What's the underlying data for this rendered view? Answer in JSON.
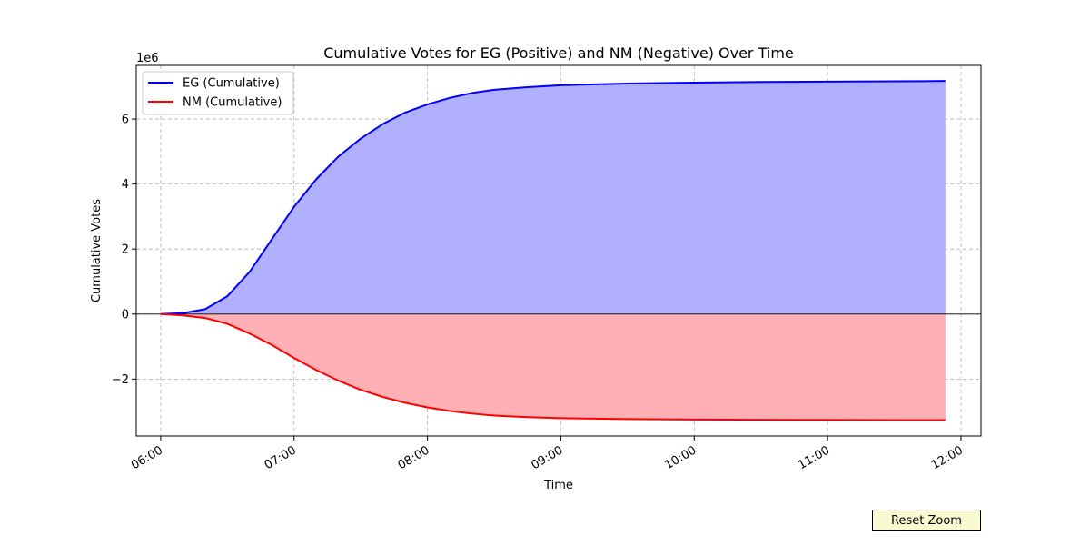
{
  "chart_data": {
    "type": "area",
    "title": "Cumulative Votes for EG (Positive) and NM (Negative) Over Time",
    "xlabel": "Time",
    "ylabel": "Cumulative Votes",
    "y_multiplier_label": "1e6",
    "xlim": [
      "05:49",
      "12:09"
    ],
    "ylim": [
      -3.75,
      7.65
    ],
    "grid": true,
    "legend_position": "top-left",
    "x_ticks": [
      "06:00",
      "07:00",
      "08:00",
      "09:00",
      "10:00",
      "11:00",
      "12:00"
    ],
    "y_ticks": [
      {
        "value": -2,
        "label": "−2"
      },
      {
        "value": 0,
        "label": "0"
      },
      {
        "value": 2,
        "label": "2"
      },
      {
        "value": 4,
        "label": "4"
      },
      {
        "value": 6,
        "label": "6"
      }
    ],
    "x": [
      "06:00",
      "06:10",
      "06:20",
      "06:30",
      "06:40",
      "06:50",
      "07:00",
      "07:10",
      "07:20",
      "07:30",
      "07:40",
      "07:50",
      "08:00",
      "08:10",
      "08:20",
      "08:30",
      "08:45",
      "09:00",
      "09:30",
      "10:00",
      "10:30",
      "11:00",
      "11:30",
      "11:53"
    ],
    "series": [
      {
        "name": "EG (Cumulative)",
        "color": "#0000ff",
        "fill": "#b0b0ff",
        "values": [
          0.0,
          0.03,
          0.15,
          0.55,
          1.3,
          2.3,
          3.3,
          4.15,
          4.85,
          5.4,
          5.85,
          6.2,
          6.45,
          6.65,
          6.8,
          6.9,
          6.98,
          7.04,
          7.09,
          7.12,
          7.14,
          7.15,
          7.16,
          7.17
        ]
      },
      {
        "name": "NM (Cumulative)",
        "color": "#ff0000",
        "fill": "#ffb0b4",
        "values": [
          0.0,
          -0.04,
          -0.12,
          -0.3,
          -0.6,
          -0.95,
          -1.35,
          -1.72,
          -2.05,
          -2.33,
          -2.55,
          -2.73,
          -2.87,
          -2.98,
          -3.06,
          -3.12,
          -3.17,
          -3.2,
          -3.23,
          -3.245,
          -3.25,
          -3.255,
          -3.26,
          -3.26
        ]
      }
    ]
  },
  "controls": {
    "reset_zoom_label": "Reset Zoom"
  }
}
